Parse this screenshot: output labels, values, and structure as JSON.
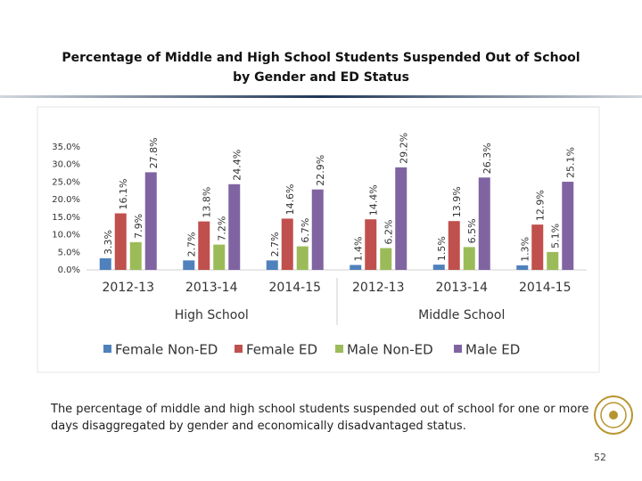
{
  "chart_data": {
    "type": "bar",
    "title": [
      "Percentage of Middle and High School Students Suspended Out of School",
      "by Gender and ED Status"
    ],
    "categories": [
      "2012-13",
      "2013-14",
      "2014-15",
      "2012-13",
      "2013-14",
      "2014-15"
    ],
    "groups": [
      "High School",
      "Middle School"
    ],
    "series": [
      {
        "name": "Female Non-ED",
        "color": "#4f81bd",
        "values": [
          3.3,
          2.7,
          2.7,
          1.4,
          1.5,
          1.3
        ],
        "value_labels": [
          "3.3%",
          "2.7%",
          "2.7%",
          "1.4%",
          "1.5%",
          "1.3%"
        ]
      },
      {
        "name": "Female ED",
        "color": "#c0504d",
        "values": [
          16.1,
          13.8,
          14.6,
          14.4,
          13.9,
          12.9
        ],
        "value_labels": [
          "16.1%",
          "13.8%",
          "14.6%",
          "14.4%",
          "13.9%",
          "12.9%"
        ]
      },
      {
        "name": "Male Non-ED",
        "color": "#9bbb59",
        "values": [
          7.9,
          7.2,
          6.7,
          6.2,
          6.5,
          5.1
        ],
        "value_labels": [
          "7.9%",
          "7.2%",
          "6.7%",
          "6.2%",
          "6.5%",
          "5.1%"
        ]
      },
      {
        "name": "Male ED",
        "color": "#8064a2",
        "values": [
          27.8,
          24.4,
          22.9,
          29.2,
          26.3,
          25.1
        ],
        "value_labels": [
          "27.8%",
          "24.4%",
          "22.9%",
          "29.2%",
          "26.3%",
          "25.1%"
        ]
      }
    ],
    "ylim": [
      0,
      35
    ],
    "yticks": [
      {
        "value": 0,
        "label": "0.0%"
      },
      {
        "value": 5,
        "label": "5.0%"
      },
      {
        "value": 10,
        "label": "10.0%"
      },
      {
        "value": 15,
        "label": "15.0%"
      },
      {
        "value": 20,
        "label": "20.0%"
      },
      {
        "value": 25,
        "label": "25.0%"
      },
      {
        "value": 30,
        "label": "30.0%"
      },
      {
        "value": 35,
        "label": "35.0%"
      }
    ],
    "legend": "bottom"
  },
  "caption": "The percentage of middle and high school students suspended out of school for one or more days disaggregated by gender and economically disadvantaged status.",
  "page_number": "52"
}
